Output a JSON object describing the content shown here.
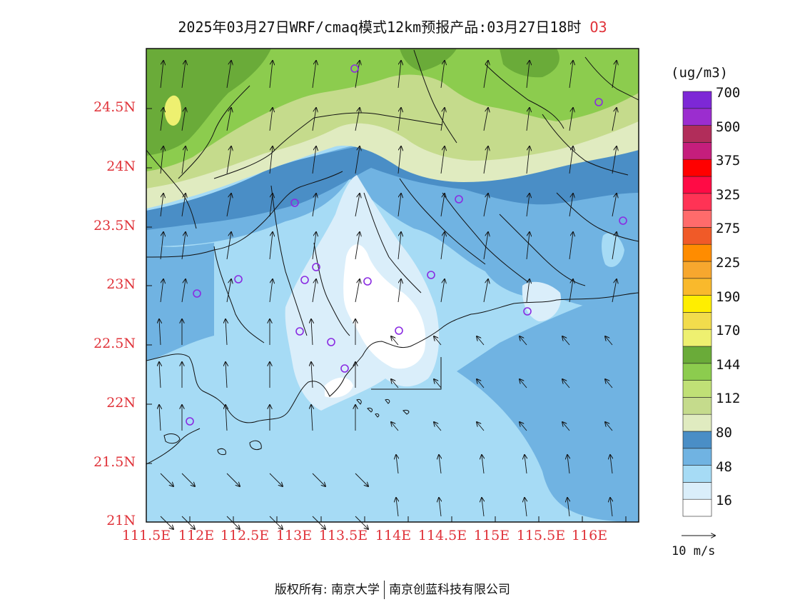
{
  "title": {
    "main": "2025年03月27日WRF/cmaq模式12km预报产品:03月27日18时",
    "species": "O3"
  },
  "map": {
    "lat_labels": [
      "21N",
      "21.5N",
      "22N",
      "22.5N",
      "23N",
      "23.5N",
      "24N",
      "24.5N"
    ],
    "lon_labels": [
      "111.5E",
      "112E",
      "112.5E",
      "113E",
      "113.5E",
      "114E",
      "114.5E",
      "115E",
      "115.5E",
      "116E"
    ]
  },
  "colorbar": {
    "unit": "(ug/m3)",
    "colors": [
      "#ffffff",
      "#daeefa",
      "#a6dbf5",
      "#70b3e2",
      "#4a8ec6",
      "#e0ebc0",
      "#c5db8c",
      "#c0e076",
      "#8ccc4e",
      "#6aab39",
      "#eef070",
      "#f2dc4c",
      "#ffee00",
      "#f9b92c",
      "#f7a72e",
      "#ff8c00",
      "#f05a28",
      "#ff6b6b",
      "#ff3355",
      "#ff0b45",
      "#ff0000",
      "#c51e7c",
      "#b12d5a",
      "#9b2dcf",
      "#7d28d6"
    ],
    "tick_labels": [
      "16",
      "48",
      "80",
      "112",
      "144",
      "170",
      "190",
      "225",
      "275",
      "325",
      "375",
      "500",
      "700"
    ]
  },
  "scale": {
    "label": "10 m/s"
  },
  "footer": {
    "left": "版权所有: 南京大学",
    "right": "南京创蓝科技有限公司"
  },
  "colors": {
    "label_red": "#e0333a",
    "station": "#8a2be2"
  }
}
